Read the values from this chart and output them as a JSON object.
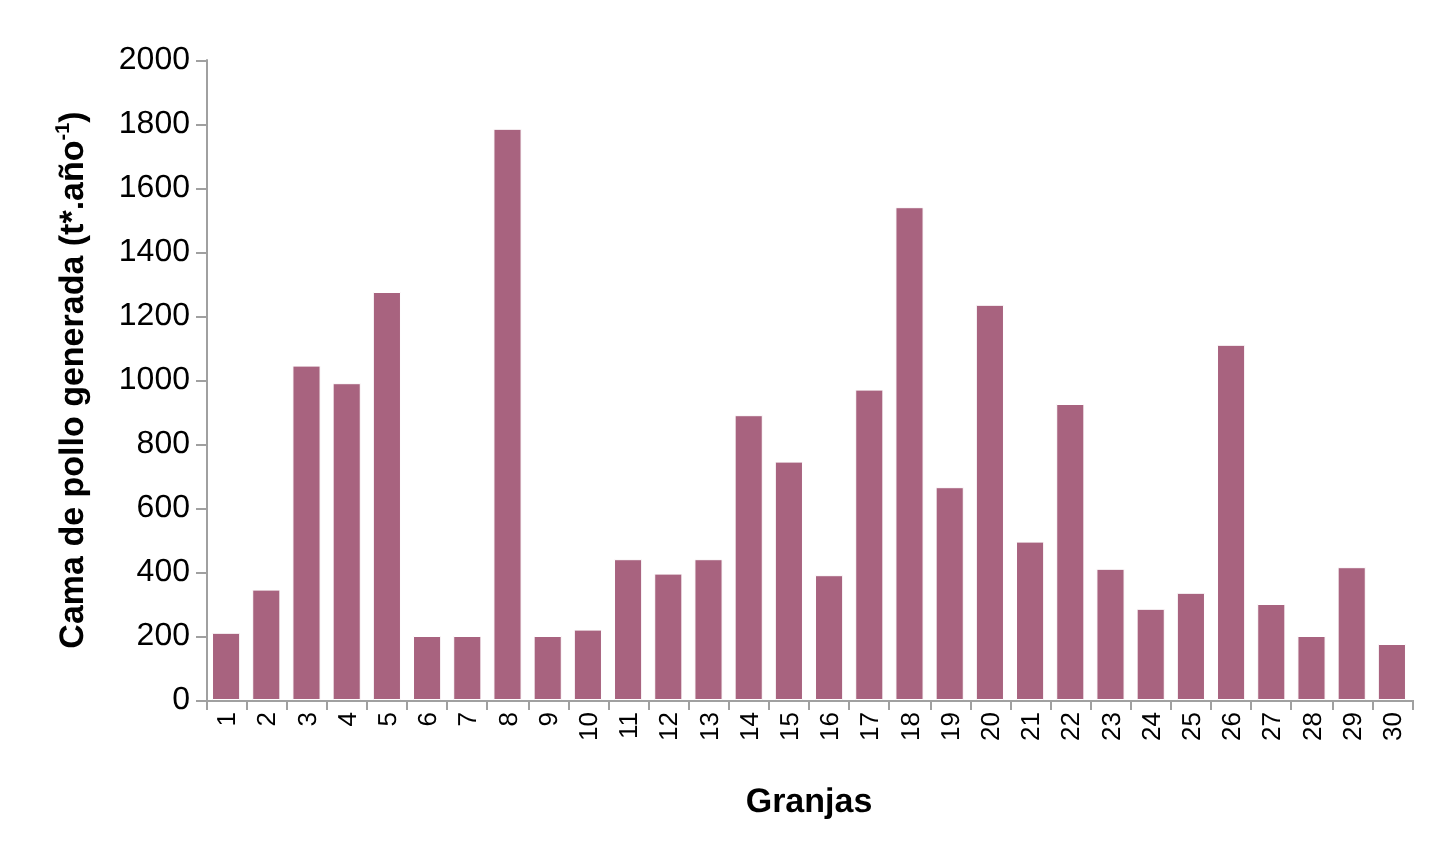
{
  "chart_data": {
    "type": "bar",
    "xlabel": "Granjas",
    "ylabel": "Cama de pollo generada (t*.año$^{-1}$)",
    "categories": [
      "1",
      "2",
      "3",
      "4",
      "5",
      "6",
      "7",
      "8",
      "9",
      "10",
      "11",
      "12",
      "13",
      "14",
      "15",
      "16",
      "17",
      "18",
      "19",
      "20",
      "21",
      "22",
      "23",
      "24",
      "25",
      "26",
      "27",
      "28",
      "29",
      "30"
    ],
    "values": [
      210,
      345,
      1045,
      990,
      1275,
      200,
      200,
      1785,
      200,
      220,
      440,
      395,
      440,
      890,
      745,
      390,
      970,
      1540,
      665,
      1235,
      495,
      925,
      410,
      285,
      335,
      1110,
      300,
      200,
      415,
      175
    ],
    "color": "#a8637f",
    "ylim": [
      0,
      2000
    ],
    "yticks": [
      0,
      200,
      400,
      600,
      800,
      1000,
      1200,
      1400,
      1600,
      1800,
      2000
    ],
    "grid": false
  }
}
